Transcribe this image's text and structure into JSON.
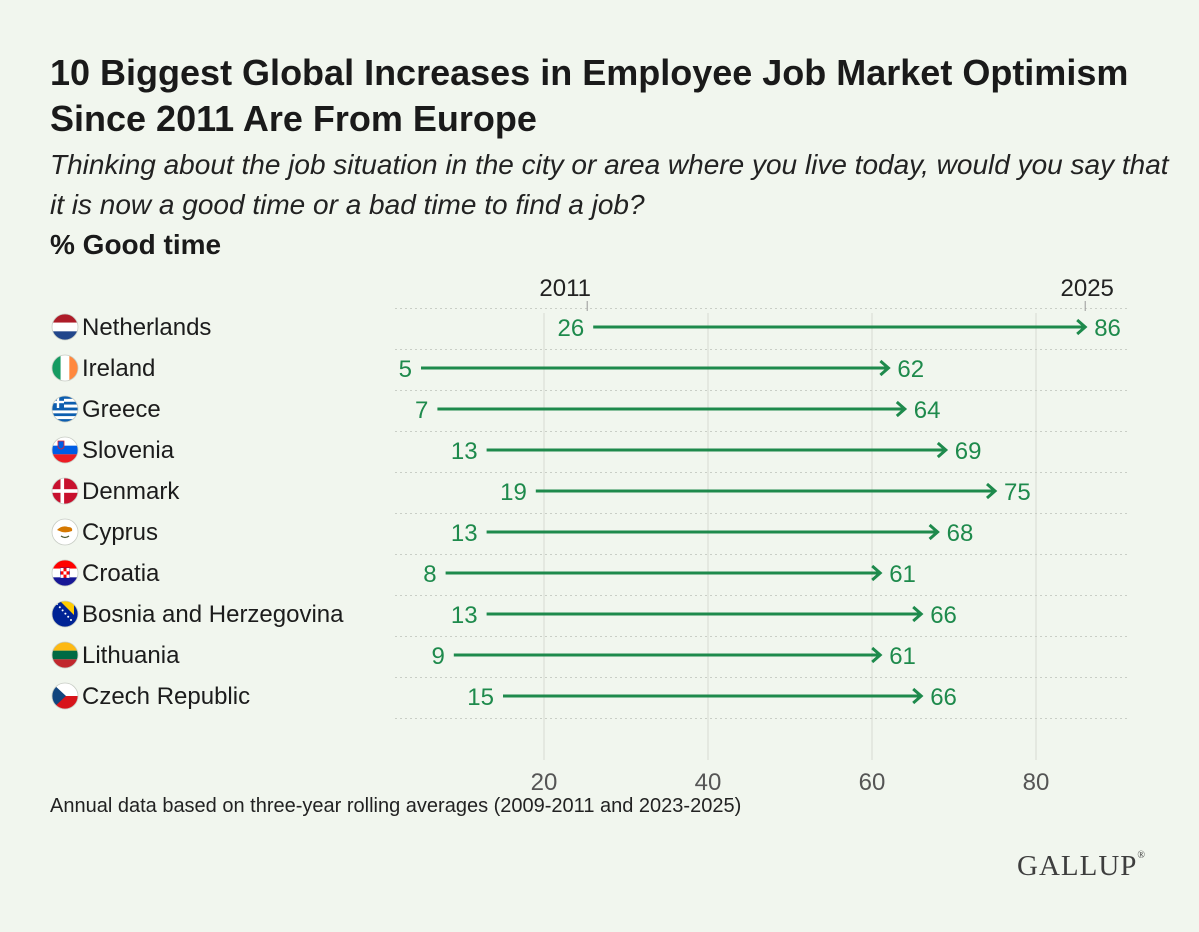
{
  "title": "10 Biggest Global Increases in Employee Job Market Optimism Since 2011 Are From Europe",
  "subtitle": "Thinking about the job situation in the city or area where you live today, would you say that it is now a good time or a bad time to find a job?",
  "metric_label": "% Good time",
  "footnote": "Annual data based on three-year rolling averages (2009-2011 and 2023-2025)",
  "brand": "GALLUP",
  "colors": {
    "accent": "#1e8a4c",
    "background": "#f1f6ee",
    "grid": "#d6dbd3",
    "text": "#1c1c1c"
  },
  "chart_data": {
    "type": "arrow",
    "start_label": "2011",
    "end_label": "2025",
    "xlim": [
      0,
      90
    ],
    "xticks": [
      "20",
      "40",
      "60",
      "80"
    ],
    "categories": [
      "Netherlands",
      "Ireland",
      "Greece",
      "Slovenia",
      "Denmark",
      "Cyprus",
      "Croatia",
      "Bosnia and Herzegovina",
      "Lithuania",
      "Czech Republic"
    ],
    "flags": [
      "netherlands-flag-icon",
      "ireland-flag-icon",
      "greece-flag-icon",
      "slovenia-flag-icon",
      "denmark-flag-icon",
      "cyprus-flag-icon",
      "croatia-flag-icon",
      "bosnia-flag-icon",
      "lithuania-flag-icon",
      "czech-flag-icon"
    ],
    "series": [
      {
        "name": "2011",
        "values": [
          26,
          5,
          7,
          13,
          19,
          13,
          8,
          13,
          9,
          15
        ]
      },
      {
        "name": "2025",
        "values": [
          86,
          62,
          64,
          69,
          75,
          68,
          61,
          66,
          61,
          66
        ]
      }
    ],
    "grid": true
  }
}
